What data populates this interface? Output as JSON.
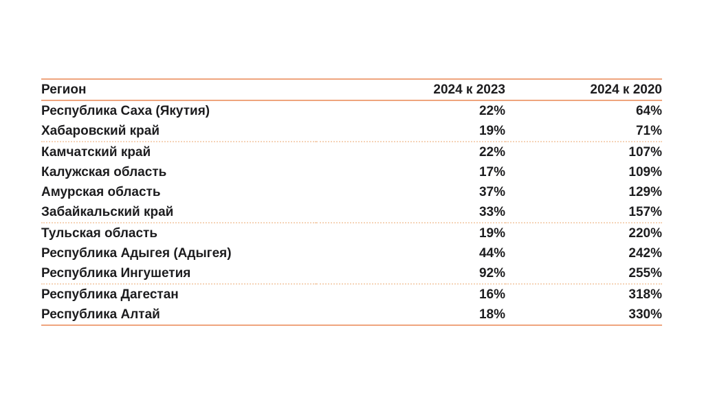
{
  "colors": {
    "background": "#ffffff",
    "text": "#1c1c1e",
    "rule_solid": "#efa47d",
    "rule_dotted": "#f5d3b6"
  },
  "chart_data": {
    "type": "table",
    "title": "",
    "columns": [
      "Регион",
      "2024 к 2023",
      "2024 к 2020"
    ],
    "rows": [
      [
        "Республика Саха (Якутия)",
        "22%",
        "64%"
      ],
      [
        "Хабаровский край",
        "19%",
        "71%"
      ],
      [
        "Камчатский край",
        "22%",
        "107%"
      ],
      [
        "Калужская область",
        "17%",
        "109%"
      ],
      [
        "Амурская область",
        "37%",
        "129%"
      ],
      [
        "Забайкальский край",
        "33%",
        "157%"
      ],
      [
        "Тульская область",
        "19%",
        "220%"
      ],
      [
        "Республика Адыгея (Адыгея)",
        "44%",
        "242%"
      ],
      [
        "Республика Ингушетия",
        "92%",
        "255%"
      ],
      [
        "Республика Дагестан",
        "16%",
        "318%"
      ],
      [
        "Республика Алтай",
        "18%",
        "330%"
      ]
    ],
    "group_separators_after_rows": [
      2,
      6,
      9
    ],
    "layout": {
      "value_alignment": "right",
      "region_alignment": "left"
    }
  }
}
